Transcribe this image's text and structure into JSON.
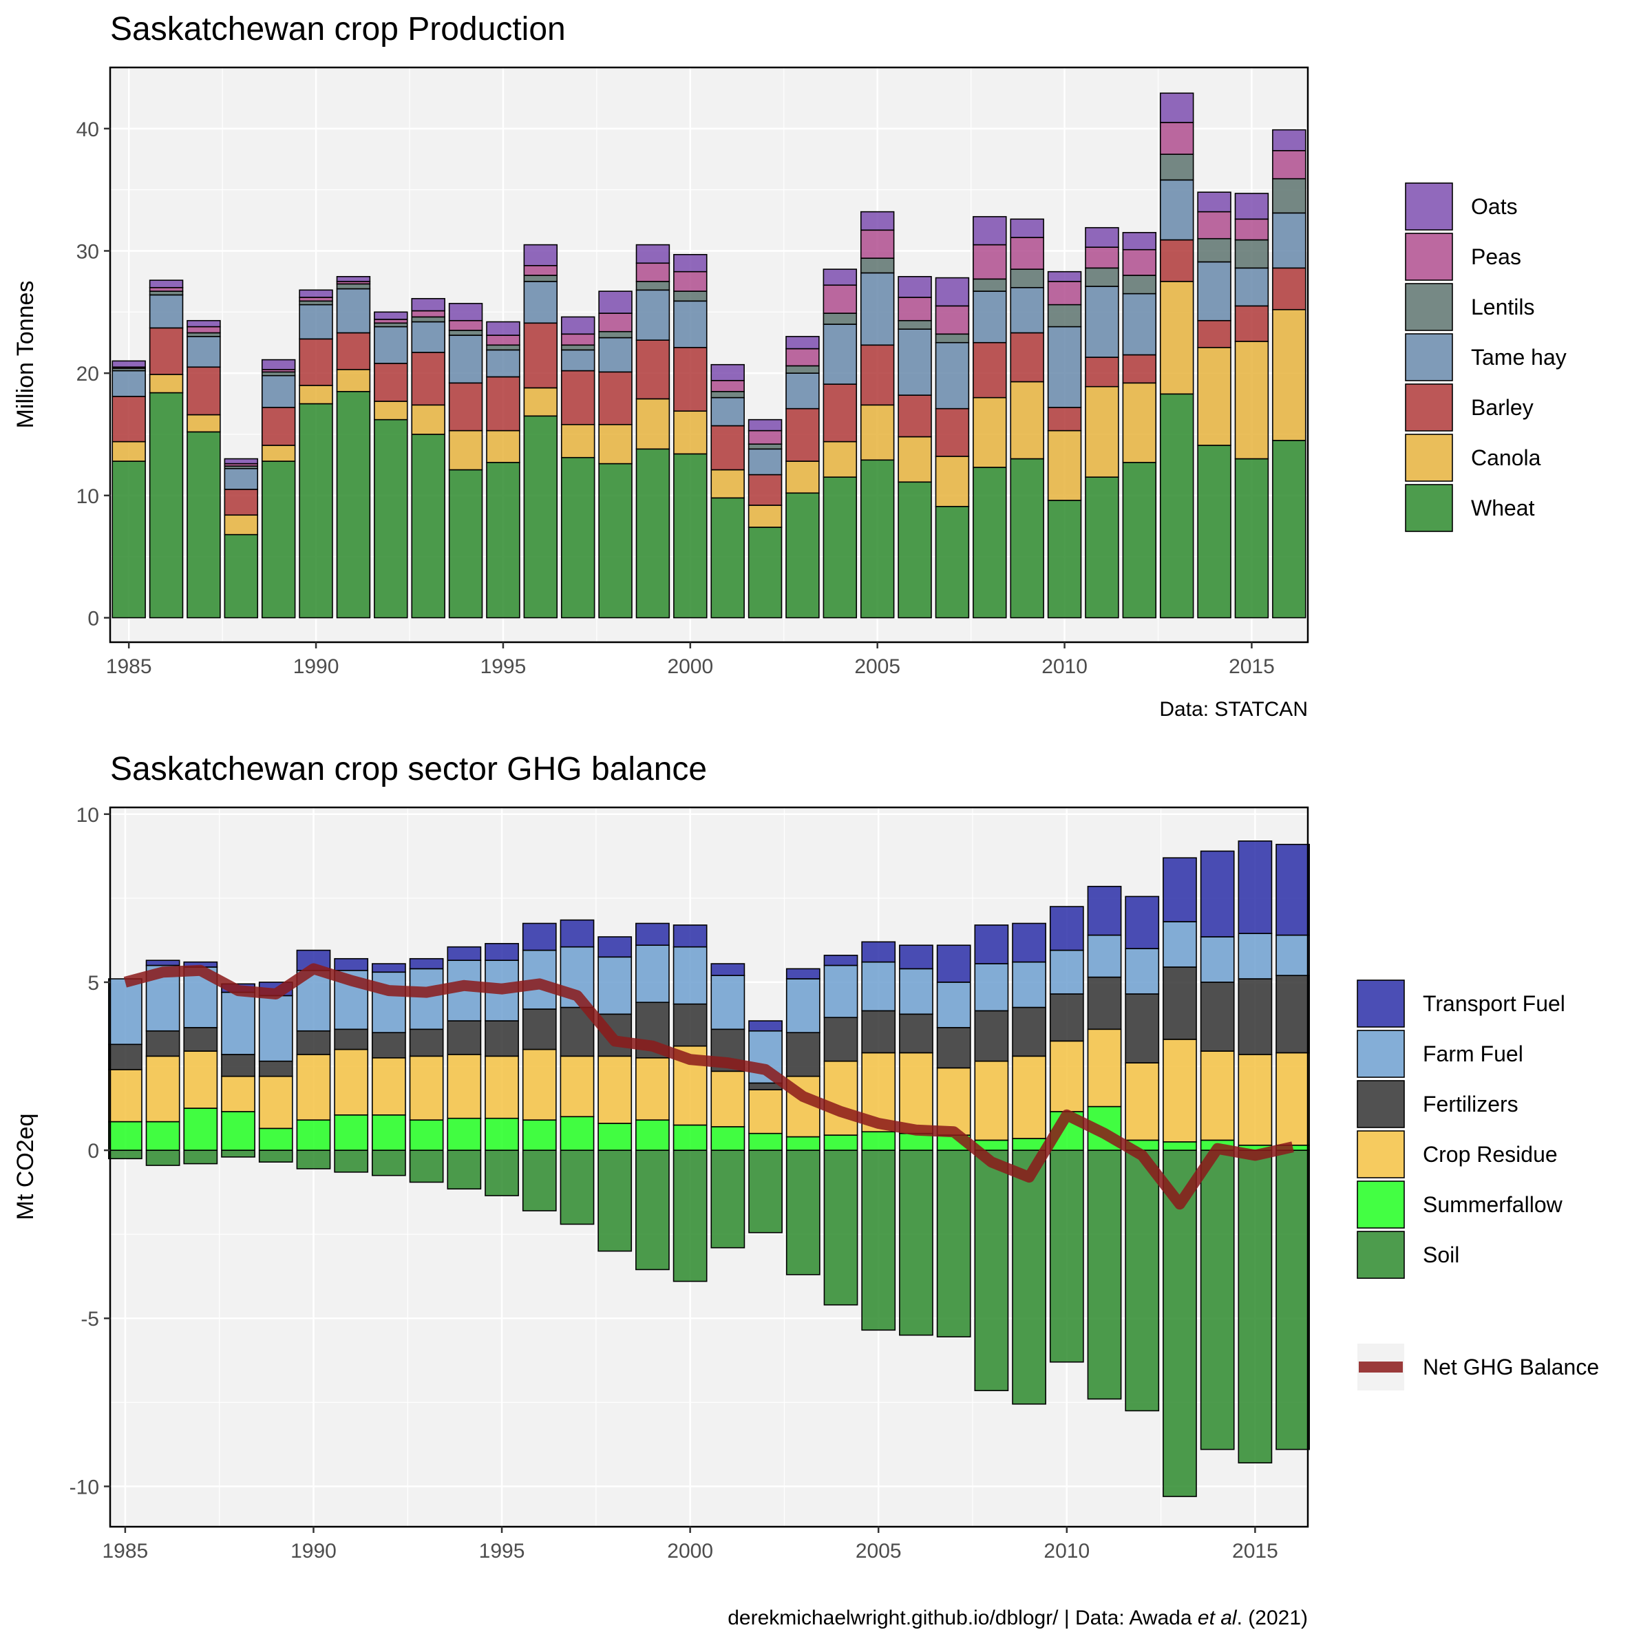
{
  "colors": {
    "Wheat": "#2e8b2e",
    "Canola": "#e6b33d",
    "Barley": "#b03a3a",
    "Tame hay": "#6889ab",
    "Lentils": "#5e7470",
    "Peas": "#b04f8f",
    "Oats": "#7e4fb0",
    "Soil": "#2e8b2e",
    "Summerfallow": "#22ff22",
    "Crop Residue": "#f5c243",
    "Fertilizers": "#333333",
    "Farm Fuel": "#6fa0d0",
    "Transport Fuel": "#2b2fa8",
    "Net GHG Balance": "#8b1a1a"
  },
  "chart_data": [
    {
      "type": "bar",
      "stacked": true,
      "title": "Saskatchewan crop Production",
      "ylabel": "Million Tonnes",
      "xlabel": "",
      "caption": "Data: STATCAN",
      "ylim": [
        -2,
        45
      ],
      "xlim": [
        1984.5,
        2016.5
      ],
      "yticks": [
        "0",
        "10",
        "20",
        "30",
        "40"
      ],
      "xticks": [
        "1985",
        "1990",
        "1995",
        "2000",
        "2005",
        "2010",
        "2015"
      ],
      "grid": true,
      "legend_position": "right",
      "legend": [
        "Oats",
        "Peas",
        "Lentils",
        "Tame hay",
        "Barley",
        "Canola",
        "Wheat"
      ],
      "x": [
        1985,
        1986,
        1987,
        1988,
        1989,
        1990,
        1991,
        1992,
        1993,
        1994,
        1995,
        1996,
        1997,
        1998,
        1999,
        2000,
        2001,
        2002,
        2003,
        2004,
        2005,
        2006,
        2007,
        2008,
        2009,
        2010,
        2011,
        2012,
        2013,
        2014,
        2015,
        2016
      ],
      "series": [
        {
          "name": "Wheat",
          "values": [
            12.8,
            18.4,
            15.2,
            6.8,
            12.8,
            17.5,
            18.5,
            16.2,
            15.0,
            12.1,
            12.7,
            16.5,
            13.1,
            12.6,
            13.8,
            13.4,
            9.8,
            7.4,
            10.2,
            11.5,
            12.9,
            11.1,
            9.1,
            12.3,
            13.0,
            9.6,
            11.5,
            12.7,
            18.3,
            14.1,
            13.0,
            14.5
          ]
        },
        {
          "name": "Canola",
          "values": [
            1.6,
            1.5,
            1.4,
            1.6,
            1.3,
            1.5,
            1.8,
            1.5,
            2.4,
            3.2,
            2.6,
            2.3,
            2.7,
            3.2,
            4.1,
            3.5,
            2.3,
            1.8,
            2.6,
            2.9,
            4.5,
            3.7,
            4.1,
            5.7,
            6.3,
            5.7,
            7.4,
            6.5,
            9.2,
            8.0,
            9.6,
            10.7
          ]
        },
        {
          "name": "Barley",
          "values": [
            3.7,
            3.8,
            3.9,
            2.1,
            3.1,
            3.8,
            3.0,
            3.1,
            4.3,
            3.9,
            4.4,
            5.3,
            4.4,
            4.3,
            4.8,
            5.2,
            3.6,
            2.5,
            4.3,
            4.7,
            4.9,
            3.4,
            3.9,
            4.5,
            4.0,
            1.9,
            2.4,
            2.3,
            3.4,
            2.2,
            2.9,
            3.4
          ]
        },
        {
          "name": "Tame hay",
          "values": [
            2.1,
            2.7,
            2.5,
            1.7,
            2.6,
            2.8,
            3.6,
            3.0,
            2.5,
            3.9,
            2.2,
            3.4,
            1.7,
            2.8,
            4.1,
            3.8,
            2.3,
            2.1,
            2.9,
            4.9,
            5.9,
            5.4,
            5.4,
            4.2,
            3.7,
            6.6,
            5.8,
            5.0,
            4.9,
            4.8,
            3.1,
            4.5
          ]
        },
        {
          "name": "Lentils",
          "values": [
            0.2,
            0.3,
            0.3,
            0.2,
            0.3,
            0.3,
            0.4,
            0.3,
            0.4,
            0.4,
            0.4,
            0.5,
            0.4,
            0.5,
            0.7,
            0.8,
            0.5,
            0.4,
            0.6,
            0.9,
            1.2,
            0.7,
            0.7,
            1.0,
            1.5,
            1.8,
            1.5,
            1.5,
            2.1,
            1.9,
            2.3,
            2.8
          ]
        },
        {
          "name": "Peas",
          "values": [
            0.1,
            0.3,
            0.5,
            0.2,
            0.2,
            0.3,
            0.2,
            0.3,
            0.5,
            0.8,
            0.8,
            0.8,
            0.9,
            1.5,
            1.5,
            1.6,
            0.9,
            1.1,
            1.4,
            2.3,
            2.3,
            1.9,
            2.3,
            2.8,
            2.6,
            1.9,
            1.7,
            2.1,
            2.6,
            2.2,
            1.7,
            2.3
          ]
        },
        {
          "name": "Oats",
          "values": [
            0.5,
            0.6,
            0.5,
            0.4,
            0.8,
            0.6,
            0.4,
            0.6,
            1.0,
            1.4,
            1.1,
            1.7,
            1.4,
            1.8,
            1.5,
            1.4,
            1.3,
            0.9,
            1.0,
            1.3,
            1.5,
            1.7,
            2.3,
            2.3,
            1.5,
            0.8,
            1.6,
            1.4,
            2.4,
            1.6,
            2.1,
            1.7
          ]
        }
      ]
    },
    {
      "type": "bar",
      "stacked": true,
      "title": "Saskatchewan crop sector GHG balance",
      "ylabel": "Mt CO2eq",
      "xlabel": "",
      "caption_prefix": "derekmichaelwright.github.io/dblogr/ | Data: Awada ",
      "caption_italic": "et al",
      "caption_suffix": ". (2021)",
      "ylim": [
        -11.2,
        10.2
      ],
      "xlim": [
        1984.6,
        2016.4
      ],
      "yticks": [
        "-10",
        "-5",
        "0",
        "5",
        "10"
      ],
      "xticks": [
        "1985",
        "1990",
        "1995",
        "2000",
        "2005",
        "2010",
        "2015"
      ],
      "grid": true,
      "legend_position": "right",
      "legend": [
        "Transport Fuel",
        "Farm Fuel",
        "Fertilizers",
        "Crop Residue",
        "Summerfallow",
        "Soil"
      ],
      "line_legend": "Net GHG Balance",
      "x": [
        1985,
        1986,
        1987,
        1988,
        1989,
        1990,
        1991,
        1992,
        1993,
        1994,
        1995,
        1996,
        1997,
        1998,
        1999,
        2000,
        2001,
        2002,
        2003,
        2004,
        2005,
        2006,
        2007,
        2008,
        2009,
        2010,
        2011,
        2012,
        2013,
        2014,
        2015,
        2016
      ],
      "series": [
        {
          "name": "Soil",
          "values": [
            -0.25,
            -0.45,
            -0.4,
            -0.2,
            -0.35,
            -0.55,
            -0.65,
            -0.75,
            -0.95,
            -1.15,
            -1.35,
            -1.8,
            -2.2,
            -3.0,
            -3.55,
            -3.9,
            -2.9,
            -2.45,
            -3.7,
            -4.6,
            -5.35,
            -5.5,
            -5.55,
            -7.15,
            -7.55,
            -6.3,
            -7.4,
            -7.75,
            -10.3,
            -8.9,
            -9.3,
            -8.9
          ]
        },
        {
          "name": "Summerfallow",
          "values": [
            0.85,
            0.85,
            1.25,
            1.15,
            0.65,
            0.9,
            1.05,
            1.05,
            0.9,
            0.95,
            0.95,
            0.9,
            1.0,
            0.8,
            0.9,
            0.75,
            0.7,
            0.5,
            0.4,
            0.45,
            0.55,
            0.5,
            0.45,
            0.3,
            0.35,
            1.15,
            1.3,
            0.3,
            0.25,
            0.3,
            0.15,
            0.15
          ]
        },
        {
          "name": "Crop Residue",
          "values": [
            1.55,
            1.95,
            1.7,
            1.05,
            1.55,
            1.95,
            1.95,
            1.7,
            1.9,
            1.9,
            1.85,
            2.1,
            1.8,
            2.0,
            1.85,
            2.35,
            1.65,
            1.3,
            1.8,
            2.2,
            2.35,
            2.4,
            2.0,
            2.35,
            2.45,
            2.1,
            2.3,
            2.3,
            3.05,
            2.65,
            2.7,
            2.75
          ]
        },
        {
          "name": "Fertilizers",
          "values": [
            0.75,
            0.75,
            0.7,
            0.65,
            0.45,
            0.7,
            0.6,
            0.75,
            0.8,
            1.0,
            1.05,
            1.2,
            1.45,
            1.25,
            1.65,
            1.25,
            1.25,
            0.2,
            1.3,
            1.3,
            1.25,
            1.15,
            1.2,
            1.5,
            1.45,
            1.4,
            1.55,
            2.05,
            2.15,
            2.05,
            2.25,
            2.3
          ]
        },
        {
          "name": "Farm Fuel",
          "values": [
            1.95,
            1.95,
            1.8,
            1.85,
            1.95,
            1.8,
            1.75,
            1.8,
            1.8,
            1.8,
            1.8,
            1.75,
            1.8,
            1.7,
            1.7,
            1.7,
            1.6,
            1.55,
            1.6,
            1.55,
            1.45,
            1.35,
            1.35,
            1.4,
            1.35,
            1.3,
            1.25,
            1.35,
            1.35,
            1.35,
            1.35,
            1.2
          ]
        },
        {
          "name": "Transport Fuel",
          "values": [
            0.0,
            0.15,
            0.15,
            0.25,
            0.4,
            0.6,
            0.35,
            0.25,
            0.3,
            0.4,
            0.5,
            0.8,
            0.8,
            0.6,
            0.65,
            0.65,
            0.35,
            0.3,
            0.3,
            0.3,
            0.6,
            0.7,
            1.1,
            1.15,
            1.15,
            1.3,
            1.45,
            1.55,
            1.9,
            2.55,
            2.75,
            2.7
          ]
        }
      ],
      "net_line": {
        "name": "Net GHG Balance",
        "values": [
          5.0,
          5.3,
          5.35,
          4.75,
          4.65,
          5.4,
          5.05,
          4.75,
          4.7,
          4.9,
          4.8,
          4.95,
          4.6,
          3.25,
          3.1,
          2.7,
          2.6,
          2.4,
          1.6,
          1.15,
          0.8,
          0.6,
          0.55,
          -0.35,
          -0.8,
          1.05,
          0.5,
          -0.15,
          -1.6,
          0.05,
          -0.15,
          0.1
        ]
      }
    }
  ]
}
